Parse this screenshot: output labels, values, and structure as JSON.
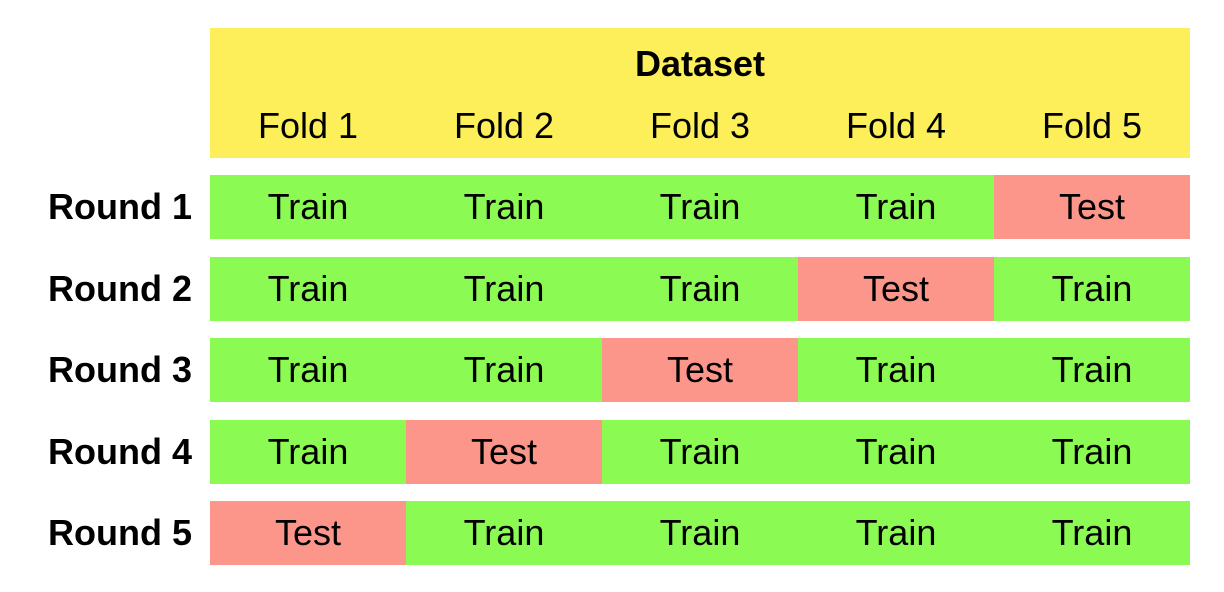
{
  "header": {
    "title": "Dataset",
    "folds": [
      "Fold 1",
      "Fold 2",
      "Fold 3",
      "Fold 4",
      "Fold 5"
    ],
    "color": "#fdef5a"
  },
  "rows": [
    {
      "label": "Round 1",
      "cells": [
        {
          "text": "Train",
          "color": "#8bfa52"
        },
        {
          "text": "Train",
          "color": "#8bfa52"
        },
        {
          "text": "Train",
          "color": "#8bfa52"
        },
        {
          "text": "Train",
          "color": "#8bfa52"
        },
        {
          "text": "Test",
          "color": "#fd968a"
        }
      ]
    },
    {
      "label": "Round 2",
      "cells": [
        {
          "text": "Train",
          "color": "#8bfa52"
        },
        {
          "text": "Train",
          "color": "#8bfa52"
        },
        {
          "text": "Train",
          "color": "#8bfa52"
        },
        {
          "text": "Test",
          "color": "#fd968a"
        },
        {
          "text": "Train",
          "color": "#8bfa52"
        }
      ]
    },
    {
      "label": "Round 3",
      "cells": [
        {
          "text": "Train",
          "color": "#8bfa52"
        },
        {
          "text": "Train",
          "color": "#8bfa52"
        },
        {
          "text": "Test",
          "color": "#fd968a"
        },
        {
          "text": "Train",
          "color": "#8bfa52"
        },
        {
          "text": "Train",
          "color": "#8bfa52"
        }
      ]
    },
    {
      "label": "Round 4",
      "cells": [
        {
          "text": "Train",
          "color": "#8bfa52"
        },
        {
          "text": "Test",
          "color": "#fd968a"
        },
        {
          "text": "Train",
          "color": "#8bfa52"
        },
        {
          "text": "Train",
          "color": "#8bfa52"
        },
        {
          "text": "Train",
          "color": "#8bfa52"
        }
      ]
    },
    {
      "label": "Round 5",
      "cells": [
        {
          "text": "Test",
          "color": "#fd968a"
        },
        {
          "text": "Train",
          "color": "#8bfa52"
        },
        {
          "text": "Train",
          "color": "#8bfa52"
        },
        {
          "text": "Train",
          "color": "#8bfa52"
        },
        {
          "text": "Train",
          "color": "#8bfa52"
        }
      ]
    }
  ]
}
